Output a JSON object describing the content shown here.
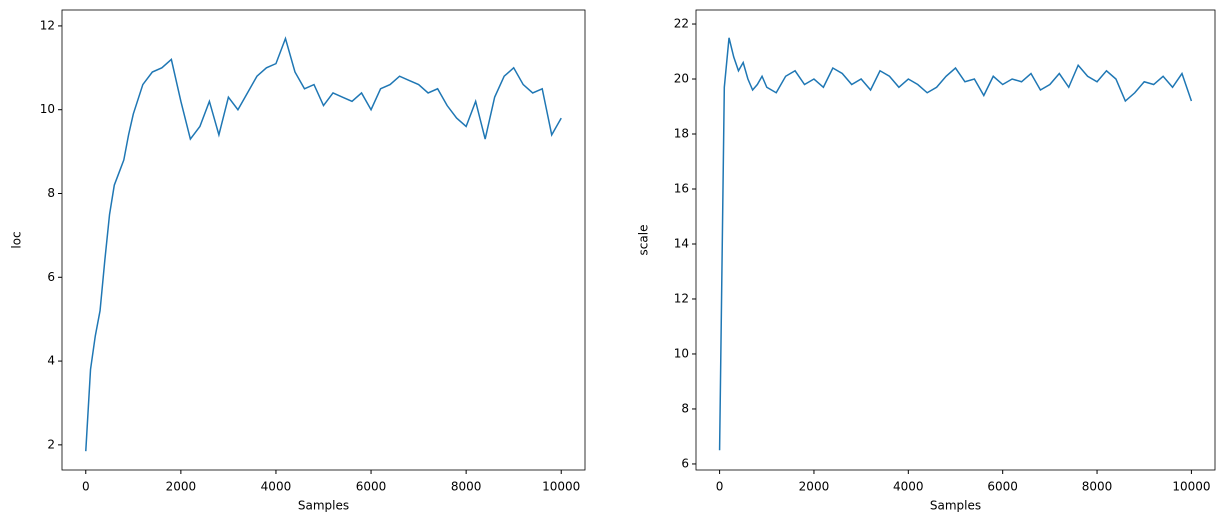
{
  "chart_data": [
    {
      "type": "line",
      "x_label": "Samples",
      "y_label": "loc",
      "x": [
        0,
        100,
        200,
        300,
        400,
        500,
        600,
        700,
        800,
        900,
        1000,
        1200,
        1400,
        1600,
        1800,
        2000,
        2200,
        2400,
        2600,
        2800,
        3000,
        3200,
        3400,
        3600,
        3800,
        4000,
        4200,
        4400,
        4600,
        4800,
        5000,
        5200,
        5400,
        5600,
        5800,
        6000,
        6200,
        6400,
        6600,
        6800,
        7000,
        7200,
        7400,
        7600,
        7800,
        8000,
        8200,
        8400,
        8600,
        8800,
        9000,
        9200,
        9400,
        9600,
        9800,
        10000
      ],
      "series": [
        {
          "color": "#1f77b4",
          "values": [
            1.85,
            3.8,
            4.6,
            5.2,
            6.4,
            7.5,
            8.2,
            8.5,
            8.8,
            9.4,
            9.9,
            10.6,
            10.9,
            11.0,
            11.2,
            10.2,
            9.3,
            9.6,
            10.2,
            9.4,
            10.3,
            10.0,
            10.4,
            10.8,
            11.0,
            11.1,
            11.7,
            10.9,
            10.5,
            10.6,
            10.1,
            10.4,
            10.3,
            10.2,
            10.4,
            10.0,
            10.5,
            10.6,
            10.8,
            10.7,
            10.6,
            10.4,
            10.5,
            10.1,
            9.8,
            9.6,
            10.2,
            9.3,
            10.3,
            10.8,
            11.0,
            10.6,
            10.4,
            10.5,
            9.4,
            9.8
          ]
        }
      ],
      "xlim": [
        -500,
        10500
      ],
      "xticks": [
        0,
        2000,
        4000,
        6000,
        8000,
        10000
      ],
      "ylim": [
        1.4,
        12.38
      ],
      "yticks": [
        2,
        4,
        6,
        8,
        10,
        12
      ]
    },
    {
      "type": "line",
      "x_label": "Samples",
      "y_label": "scale",
      "x": [
        0,
        100,
        200,
        300,
        400,
        500,
        600,
        700,
        800,
        900,
        1000,
        1200,
        1400,
        1600,
        1800,
        2000,
        2200,
        2400,
        2600,
        2800,
        3000,
        3200,
        3400,
        3600,
        3800,
        4000,
        4200,
        4400,
        4600,
        4800,
        5000,
        5200,
        5400,
        5600,
        5800,
        6000,
        6200,
        6400,
        6600,
        6800,
        7000,
        7200,
        7400,
        7600,
        7800,
        8000,
        8200,
        8400,
        8600,
        8800,
        9000,
        9200,
        9400,
        9600,
        9800,
        10000
      ],
      "series": [
        {
          "color": "#1f77b4",
          "values": [
            6.5,
            19.7,
            21.5,
            20.8,
            20.3,
            20.6,
            20.0,
            19.6,
            19.8,
            20.1,
            19.7,
            19.5,
            20.1,
            20.3,
            19.8,
            20.0,
            19.7,
            20.4,
            20.2,
            19.8,
            20.0,
            19.6,
            20.3,
            20.1,
            19.7,
            20.0,
            19.8,
            19.5,
            19.7,
            20.1,
            20.4,
            19.9,
            20.0,
            19.4,
            20.1,
            19.8,
            20.0,
            19.9,
            20.2,
            19.6,
            19.8,
            20.2,
            19.7,
            20.5,
            20.1,
            19.9,
            20.3,
            20.0,
            19.2,
            19.5,
            19.9,
            19.8,
            20.1,
            19.7,
            20.2,
            19.2
          ]
        }
      ],
      "xlim": [
        -500,
        10500
      ],
      "xticks": [
        0,
        2000,
        4000,
        6000,
        8000,
        10000
      ],
      "ylim": [
        5.78,
        22.51
      ],
      "yticks": [
        6,
        8,
        10,
        12,
        14,
        16,
        18,
        20,
        22
      ]
    }
  ]
}
